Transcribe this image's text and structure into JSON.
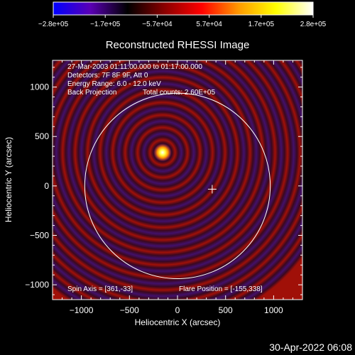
{
  "chart_data": {
    "type": "heatmap",
    "title": "Reconstructed RHESSI Image",
    "xlabel": "Heliocentric X (arcsec)",
    "ylabel": "Heliocentric Y (arcsec)",
    "xlim": [
      -1300,
      1300
    ],
    "ylim": [
      -1150,
      1270
    ],
    "xticks": [
      -1000,
      -500,
      0,
      500,
      1000
    ],
    "yticks": [
      -1000,
      -500,
      0,
      500,
      1000
    ],
    "xtick_labels": [
      "−1000",
      "−500",
      "0",
      "500",
      "1000"
    ],
    "ytick_labels": [
      "−1000",
      "−500",
      "0",
      "500",
      "1000"
    ],
    "colorbar": {
      "min": -280000,
      "max": 280000,
      "tick_labels": [
        "−2.8e+05",
        "−1.7e+05",
        "−5.7e+04",
        "5.7e+04",
        "1.7e+05",
        "2.8e+05"
      ],
      "stops": [
        "#0000ff",
        "#5a00b4",
        "#000000",
        "#8b0000",
        "#ff0000",
        "#ff9a00",
        "#ffff00",
        "#ffffff"
      ]
    },
    "annotations": [
      "27-Mar-2003 01:11:00.000 to 01:17:00.000",
      "Detectors: 7F 8F 9F, Att 0",
      "Energy Range: 6.0 - 12.0 keV",
      "Back Projection",
      "Total counts: 2.60E+05"
    ],
    "spin_axis_label": "Spin Axis = [361,-33]",
    "flare_position_label": "Flare Position = [-155,338]",
    "flare_position": [
      -155,
      338
    ],
    "spin_axis": [
      361,
      -33
    ],
    "solar_disk_radius_arcsec": 965,
    "solar_disk_center": [
      0,
      0
    ],
    "ring_pattern": {
      "center": [
        -155,
        338
      ],
      "ring_spacing_arcsec": 130
    }
  },
  "footer": {
    "timestamp": "30-Apr-2022 06:08"
  },
  "colors": {
    "background": "#000000",
    "foreground": "#ffffff"
  }
}
